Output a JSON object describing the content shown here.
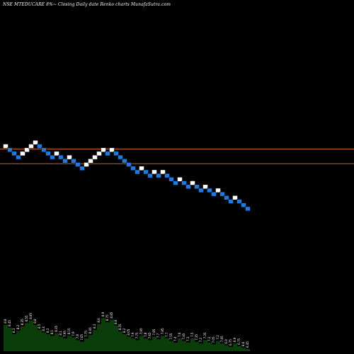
{
  "title": "NSE MTEDUCARE 8%~   Closing Daily date  Renko  charts MunafaSutra.com",
  "colors": {
    "background": "#000000",
    "up_brick": "#ffffff",
    "down_brick": "#1f7ae0",
    "level_line": "#c0632a",
    "volume_fill": "#0b3d0b",
    "volume_text": "#ffffff"
  },
  "chart_data": {
    "type": "renko",
    "title": "NSE MTEDUCARE 8%~   Closing Daily date  Renko  charts MunafaSutra.com",
    "bricks": [
      {
        "level": 0,
        "dir": "up"
      },
      {
        "level": -1,
        "dir": "down"
      },
      {
        "level": -2,
        "dir": "down"
      },
      {
        "level": -3,
        "dir": "down"
      },
      {
        "level": -2,
        "dir": "up"
      },
      {
        "level": -1,
        "dir": "up"
      },
      {
        "level": 0,
        "dir": "up"
      },
      {
        "level": 1,
        "dir": "up"
      },
      {
        "level": 0,
        "dir": "down"
      },
      {
        "level": -1,
        "dir": "down"
      },
      {
        "level": -2,
        "dir": "down"
      },
      {
        "level": -3,
        "dir": "down"
      },
      {
        "level": -2,
        "dir": "up"
      },
      {
        "level": -3,
        "dir": "down"
      },
      {
        "level": -4,
        "dir": "down"
      },
      {
        "level": -3,
        "dir": "up"
      },
      {
        "level": -4,
        "dir": "down"
      },
      {
        "level": -5,
        "dir": "down"
      },
      {
        "level": -6,
        "dir": "down"
      },
      {
        "level": -5,
        "dir": "up"
      },
      {
        "level": -4,
        "dir": "up"
      },
      {
        "level": -3,
        "dir": "up"
      },
      {
        "level": -2,
        "dir": "up"
      },
      {
        "level": -1,
        "dir": "up"
      },
      {
        "level": -2,
        "dir": "down"
      },
      {
        "level": -1,
        "dir": "up"
      },
      {
        "level": -2,
        "dir": "down"
      },
      {
        "level": -3,
        "dir": "down"
      },
      {
        "level": -4,
        "dir": "down"
      },
      {
        "level": -5,
        "dir": "down"
      },
      {
        "level": -6,
        "dir": "down"
      },
      {
        "level": -7,
        "dir": "down"
      },
      {
        "level": -6,
        "dir": "up"
      },
      {
        "level": -7,
        "dir": "down"
      },
      {
        "level": -8,
        "dir": "down"
      },
      {
        "level": -7,
        "dir": "up"
      },
      {
        "level": -8,
        "dir": "down"
      },
      {
        "level": -7,
        "dir": "up"
      },
      {
        "level": -8,
        "dir": "down"
      },
      {
        "level": -9,
        "dir": "down"
      },
      {
        "level": -10,
        "dir": "down"
      },
      {
        "level": -9,
        "dir": "up"
      },
      {
        "level": -10,
        "dir": "down"
      },
      {
        "level": -11,
        "dir": "down"
      },
      {
        "level": -10,
        "dir": "up"
      },
      {
        "level": -11,
        "dir": "down"
      },
      {
        "level": -12,
        "dir": "down"
      },
      {
        "level": -11,
        "dir": "up"
      },
      {
        "level": -12,
        "dir": "down"
      },
      {
        "level": -13,
        "dir": "down"
      },
      {
        "level": -12,
        "dir": "up"
      },
      {
        "level": -13,
        "dir": "down"
      },
      {
        "level": -14,
        "dir": "down"
      },
      {
        "level": -15,
        "dir": "down"
      },
      {
        "level": -14,
        "dir": "up"
      },
      {
        "level": -15,
        "dir": "down"
      },
      {
        "level": -16,
        "dir": "down"
      },
      {
        "level": -17,
        "dir": "down"
      }
    ],
    "level_lines": [
      0,
      -4
    ],
    "volume": [
      {
        "value": 0.62,
        "label": "8.8"
      },
      {
        "value": 0.55,
        "label": "8.45"
      },
      {
        "value": 0.4,
        "label": "8.3"
      },
      {
        "value": 0.48,
        "label": "8.2"
      },
      {
        "value": 0.58,
        "label": "8.35"
      },
      {
        "value": 0.66,
        "label": "8.55"
      },
      {
        "value": 0.72,
        "label": "8.95"
      },
      {
        "value": 0.62,
        "label": "8.8"
      },
      {
        "value": 0.5,
        "label": "8.5"
      },
      {
        "value": 0.44,
        "label": "8.4"
      },
      {
        "value": 0.4,
        "label": "8.3"
      },
      {
        "value": 0.36,
        "label": "8.1"
      },
      {
        "value": 0.42,
        "label": "8.35"
      },
      {
        "value": 0.34,
        "label": "8.1"
      },
      {
        "value": 0.3,
        "label": "7.95"
      },
      {
        "value": 0.36,
        "label": "8.15"
      },
      {
        "value": 0.32,
        "label": "7.9"
      },
      {
        "value": 0.26,
        "label": "7.8"
      },
      {
        "value": 0.22,
        "label": "7.65"
      },
      {
        "value": 0.3,
        "label": "7.75"
      },
      {
        "value": 0.38,
        "label": "8.05"
      },
      {
        "value": 0.5,
        "label": "8.3"
      },
      {
        "value": 0.64,
        "label": "8.6"
      },
      {
        "value": 0.78,
        "label": "8.9"
      },
      {
        "value": 0.68,
        "label": "8.75"
      },
      {
        "value": 0.74,
        "label": "8.85"
      },
      {
        "value": 0.6,
        "label": "8.6"
      },
      {
        "value": 0.46,
        "label": "8.35"
      },
      {
        "value": 0.4,
        "label": "8.2"
      },
      {
        "value": 0.34,
        "label": "8.05"
      },
      {
        "value": 0.3,
        "label": "7.9"
      },
      {
        "value": 0.26,
        "label": "7.75"
      },
      {
        "value": 0.36,
        "label": "7.95"
      },
      {
        "value": 0.3,
        "label": "7.8"
      },
      {
        "value": 0.26,
        "label": "7.65"
      },
      {
        "value": 0.34,
        "label": "7.85"
      },
      {
        "value": 0.28,
        "label": "7.7"
      },
      {
        "value": 0.36,
        "label": "7.85"
      },
      {
        "value": 0.3,
        "label": "7.7"
      },
      {
        "value": 0.24,
        "label": "7.55"
      },
      {
        "value": 0.2,
        "label": "7.4"
      },
      {
        "value": 0.3,
        "label": "7.6"
      },
      {
        "value": 0.24,
        "label": "7.45"
      },
      {
        "value": 0.2,
        "label": "7.3"
      },
      {
        "value": 0.3,
        "label": "7.5"
      },
      {
        "value": 0.22,
        "label": "7.35"
      },
      {
        "value": 0.18,
        "label": "7.2"
      },
      {
        "value": 0.26,
        "label": "7.35"
      },
      {
        "value": 0.2,
        "label": "7.2"
      },
      {
        "value": 0.16,
        "label": "7.05"
      },
      {
        "value": 0.24,
        "label": "7.2"
      },
      {
        "value": 0.18,
        "label": "7.05"
      },
      {
        "value": 0.14,
        "label": "6.9"
      },
      {
        "value": 0.1,
        "label": "6.75"
      },
      {
        "value": 0.18,
        "label": "6.9"
      },
      {
        "value": 0.12,
        "label": "6.75"
      },
      {
        "value": 0.08,
        "label": "6.6"
      },
      {
        "value": 0.05,
        "label": "6.45"
      }
    ]
  }
}
